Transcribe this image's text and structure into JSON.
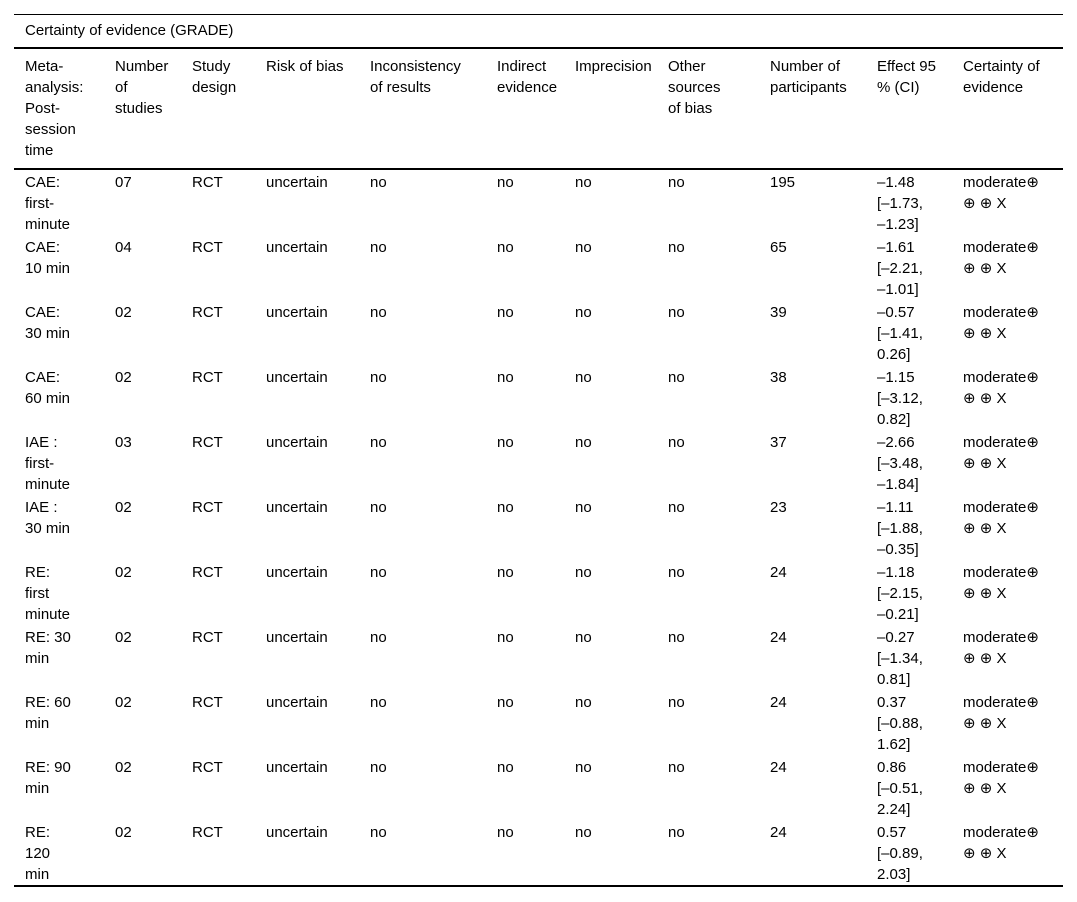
{
  "table": {
    "title": "Certainty of evidence (GRADE)",
    "columns": [
      {
        "key": "meta",
        "label": "Meta-\nanalysis:\nPost-\nsession\ntime"
      },
      {
        "key": "studies",
        "label": "Number\nof\nstudies"
      },
      {
        "key": "design",
        "label": "Study\ndesign"
      },
      {
        "key": "risk_of_bias",
        "label": "Risk of bias"
      },
      {
        "key": "inconsistency",
        "label": "Inconsistency\nof results"
      },
      {
        "key": "indirect",
        "label": "Indirect\nevidence"
      },
      {
        "key": "imprecision",
        "label": "Imprecision"
      },
      {
        "key": "other_bias",
        "label": "Other\nsources\nof bias"
      },
      {
        "key": "participants",
        "label": "Number of\nparticipants"
      },
      {
        "key": "effect",
        "label": "Effect 95\n% (CI)"
      },
      {
        "key": "certainty",
        "label": "Certainty of\nevidence"
      }
    ],
    "rows": [
      {
        "meta": "CAE:\nfirst-\nminute",
        "studies": "07",
        "design": "RCT",
        "risk_of_bias": "uncertain",
        "inconsistency": "no",
        "indirect": "no",
        "imprecision": "no",
        "other_bias": "no",
        "participants": "195",
        "effect": "–1.48\n[–1.73,\n–1.23]",
        "certainty": "moderate⊕\n⊕ ⊕ X"
      },
      {
        "meta": "CAE:\n10 min",
        "studies": "04",
        "design": "RCT",
        "risk_of_bias": "uncertain",
        "inconsistency": "no",
        "indirect": "no",
        "imprecision": "no",
        "other_bias": "no",
        "participants": "65",
        "effect": "–1.61\n[–2.21,\n–1.01]",
        "certainty": "moderate⊕\n⊕ ⊕ X"
      },
      {
        "meta": "CAE:\n30 min",
        "studies": "02",
        "design": "RCT",
        "risk_of_bias": "uncertain",
        "inconsistency": "no",
        "indirect": "no",
        "imprecision": "no",
        "other_bias": "no",
        "participants": "39",
        "effect": "–0.57\n[–1.41,\n0.26]",
        "certainty": "moderate⊕\n⊕ ⊕ X"
      },
      {
        "meta": "CAE:\n60 min",
        "studies": "02",
        "design": "RCT",
        "risk_of_bias": "uncertain",
        "inconsistency": "no",
        "indirect": "no",
        "imprecision": "no",
        "other_bias": "no",
        "participants": "38",
        "effect": "–1.15\n[–3.12,\n0.82]",
        "certainty": "moderate⊕\n⊕ ⊕ X"
      },
      {
        "meta": "IAE :\nfirst-\nminute",
        "studies": "03",
        "design": "RCT",
        "risk_of_bias": "uncertain",
        "inconsistency": "no",
        "indirect": "no",
        "imprecision": "no",
        "other_bias": "no",
        "participants": "37",
        "effect": "–2.66\n[–3.48,\n–1.84]",
        "certainty": "moderate⊕\n⊕ ⊕ X"
      },
      {
        "meta": "IAE :\n30 min",
        "studies": "02",
        "design": "RCT",
        "risk_of_bias": "uncertain",
        "inconsistency": "no",
        "indirect": "no",
        "imprecision": "no",
        "other_bias": "no",
        "participants": "23",
        "effect": "–1.11\n[–1.88,\n–0.35]",
        "certainty": "moderate⊕\n⊕ ⊕ X"
      },
      {
        "meta": "RE:\nfirst\nminute",
        "studies": "02",
        "design": "RCT",
        "risk_of_bias": "uncertain",
        "inconsistency": "no",
        "indirect": "no",
        "imprecision": "no",
        "other_bias": "no",
        "participants": "24",
        "effect": "–1.18\n[–2.15,\n–0.21]",
        "certainty": "moderate⊕\n⊕ ⊕ X"
      },
      {
        "meta": "RE: 30\nmin",
        "studies": "02",
        "design": "RCT",
        "risk_of_bias": "uncertain",
        "inconsistency": "no",
        "indirect": "no",
        "imprecision": "no",
        "other_bias": "no",
        "participants": "24",
        "effect": "–0.27\n[–1.34,\n0.81]",
        "certainty": "moderate⊕\n⊕ ⊕ X"
      },
      {
        "meta": "RE: 60\nmin",
        "studies": "02",
        "design": "RCT",
        "risk_of_bias": "uncertain",
        "inconsistency": "no",
        "indirect": "no",
        "imprecision": "no",
        "other_bias": "no",
        "participants": "24",
        "effect": "0.37\n[–0.88,\n1.62]",
        "certainty": "moderate⊕\n⊕ ⊕ X"
      },
      {
        "meta": "RE: 90\nmin",
        "studies": "02",
        "design": "RCT",
        "risk_of_bias": "uncertain",
        "inconsistency": "no",
        "indirect": "no",
        "imprecision": "no",
        "other_bias": "no",
        "participants": "24",
        "effect": "0.86\n[–0.51,\n2.24]",
        "certainty": "moderate⊕\n⊕ ⊕ X"
      },
      {
        "meta": "RE:\n120\nmin",
        "studies": "02",
        "design": "RCT",
        "risk_of_bias": "uncertain",
        "inconsistency": "no",
        "indirect": "no",
        "imprecision": "no",
        "other_bias": "no",
        "participants": "24",
        "effect": "0.57\n[–0.89,\n2.03]",
        "certainty": "moderate⊕\n⊕ ⊕ X"
      }
    ]
  }
}
